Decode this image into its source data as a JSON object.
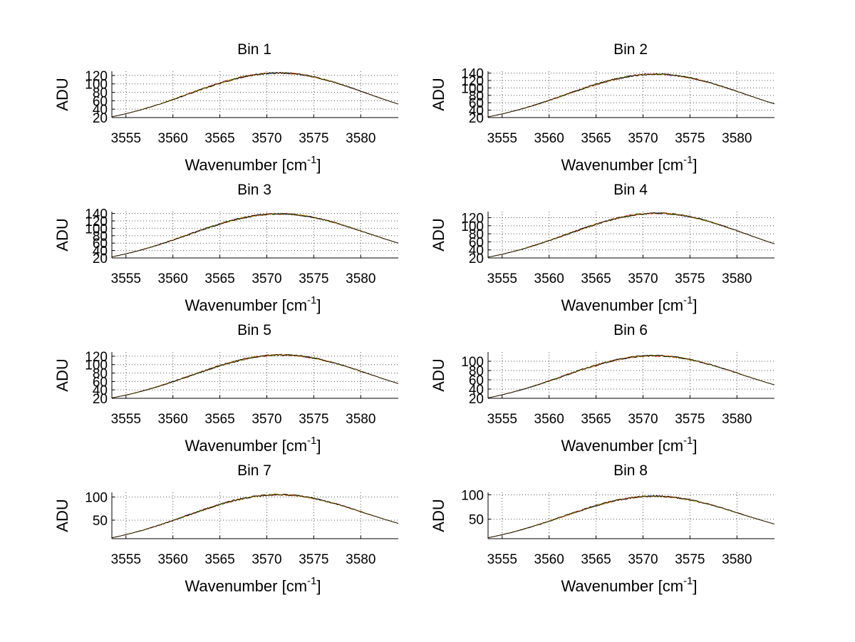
{
  "figure": {
    "background": "#ffffff",
    "line_colors": [
      "#0000ff",
      "#00a000",
      "#ff0000",
      "#e0c000",
      "#000000"
    ]
  },
  "chart_data": [
    {
      "type": "line",
      "title": "Bin 1",
      "xlabel": "Wavenumber [cm",
      "xlabel_sup": "-1",
      "xlabel_end": "]",
      "ylabel": "ADU",
      "xlim": [
        3553.5,
        3584
      ],
      "ylim": [
        20,
        130
      ],
      "xticks": [
        3555,
        3560,
        3565,
        3570,
        3575,
        3580
      ],
      "xtick_labels": [
        "3555",
        "3560",
        "3565",
        "3570",
        "3575",
        "3580"
      ],
      "yticks": [
        20,
        40,
        60,
        80,
        100,
        120
      ],
      "ytick_labels": [
        "20",
        "40",
        "60",
        "80",
        "100",
        "120"
      ],
      "peak": {
        "x": 3571.2,
        "y": 126
      },
      "start_y": 22,
      "end_y": 52,
      "grid": true
    },
    {
      "type": "line",
      "title": "Bin 2",
      "xlabel": "Wavenumber [cm",
      "xlabel_sup": "-1",
      "xlabel_end": "]",
      "ylabel": "ADU",
      "xlim": [
        3553.5,
        3584
      ],
      "ylim": [
        20,
        145
      ],
      "xticks": [
        3555,
        3560,
        3565,
        3570,
        3575,
        3580
      ],
      "xtick_labels": [
        "3555",
        "3560",
        "3565",
        "3570",
        "3575",
        "3580"
      ],
      "yticks": [
        20,
        40,
        60,
        80,
        100,
        120,
        140
      ],
      "ytick_labels": [
        "20",
        "40",
        "60",
        "80",
        "100",
        "120",
        "140"
      ],
      "peak": {
        "x": 3571.3,
        "y": 137
      },
      "start_y": 22,
      "end_y": 57,
      "grid": true
    },
    {
      "type": "line",
      "title": "Bin 3",
      "xlabel": "Wavenumber [cm",
      "xlabel_sup": "-1",
      "xlabel_end": "]",
      "ylabel": "ADU",
      "xlim": [
        3553.5,
        3584
      ],
      "ylim": [
        20,
        145
      ],
      "xticks": [
        3555,
        3560,
        3565,
        3570,
        3575,
        3580
      ],
      "xtick_labels": [
        "3555",
        "3560",
        "3565",
        "3570",
        "3575",
        "3580"
      ],
      "yticks": [
        20,
        40,
        60,
        80,
        100,
        120,
        140
      ],
      "ytick_labels": [
        "20",
        "40",
        "60",
        "80",
        "100",
        "120",
        "140"
      ],
      "peak": {
        "x": 3571.2,
        "y": 139
      },
      "start_y": 23,
      "end_y": 60,
      "grid": true
    },
    {
      "type": "line",
      "title": "Bin 4",
      "xlabel": "Wavenumber [cm",
      "xlabel_sup": "-1",
      "xlabel_end": "]",
      "ylabel": "ADU",
      "xlim": [
        3553.5,
        3584
      ],
      "ylim": [
        20,
        135
      ],
      "xticks": [
        3555,
        3560,
        3565,
        3570,
        3575,
        3580
      ],
      "xtick_labels": [
        "3555",
        "3560",
        "3565",
        "3570",
        "3575",
        "3580"
      ],
      "yticks": [
        20,
        40,
        60,
        80,
        100,
        120
      ],
      "ytick_labels": [
        "20",
        "40",
        "60",
        "80",
        "100",
        "120"
      ],
      "peak": {
        "x": 3571.5,
        "y": 131
      },
      "start_y": 22,
      "end_y": 55,
      "grid": true
    },
    {
      "type": "line",
      "title": "Bin 5",
      "xlabel": "Wavenumber [cm",
      "xlabel_sup": "-1",
      "xlabel_end": "]",
      "ylabel": "ADU",
      "xlim": [
        3553.5,
        3584
      ],
      "ylim": [
        20,
        130
      ],
      "xticks": [
        3555,
        3560,
        3565,
        3570,
        3575,
        3580
      ],
      "xtick_labels": [
        "3555",
        "3560",
        "3565",
        "3570",
        "3575",
        "3580"
      ],
      "yticks": [
        20,
        40,
        60,
        80,
        100,
        120
      ],
      "ytick_labels": [
        "20",
        "40",
        "60",
        "80",
        "100",
        "120"
      ],
      "peak": {
        "x": 3571.5,
        "y": 123
      },
      "start_y": 21,
      "end_y": 55,
      "grid": true
    },
    {
      "type": "line",
      "title": "Bin 6",
      "xlabel": "Wavenumber [cm",
      "xlabel_sup": "-1",
      "xlabel_end": "]",
      "ylabel": "ADU",
      "xlim": [
        3553.5,
        3584
      ],
      "ylim": [
        20,
        120
      ],
      "xticks": [
        3555,
        3560,
        3565,
        3570,
        3575,
        3580
      ],
      "xtick_labels": [
        "3555",
        "3560",
        "3565",
        "3570",
        "3575",
        "3580"
      ],
      "yticks": [
        20,
        40,
        60,
        80,
        100
      ],
      "ytick_labels": [
        "20",
        "40",
        "60",
        "80",
        "100"
      ],
      "peak": {
        "x": 3571.0,
        "y": 112
      },
      "start_y": 21,
      "end_y": 49,
      "grid": true
    },
    {
      "type": "line",
      "title": "Bin 7",
      "xlabel": "Wavenumber [cm",
      "xlabel_sup": "-1",
      "xlabel_end": "]",
      "ylabel": "ADU",
      "xlim": [
        3553.5,
        3584
      ],
      "ylim": [
        10,
        110
      ],
      "xticks": [
        3555,
        3560,
        3565,
        3570,
        3575,
        3580
      ],
      "xtick_labels": [
        "3555",
        "3560",
        "3565",
        "3570",
        "3575",
        "3580"
      ],
      "yticks": [
        50,
        100
      ],
      "ytick_labels": [
        "50",
        "100"
      ],
      "peak": {
        "x": 3571.0,
        "y": 105
      },
      "start_y": 12,
      "end_y": 43,
      "grid": true
    },
    {
      "type": "line",
      "title": "Bin 8",
      "xlabel": "Wavenumber [cm",
      "xlabel_sup": "-1",
      "xlabel_end": "]",
      "ylabel": "ADU",
      "xlim": [
        3553.5,
        3584
      ],
      "ylim": [
        10,
        105
      ],
      "xticks": [
        3555,
        3560,
        3565,
        3570,
        3575,
        3580
      ],
      "xtick_labels": [
        "3555",
        "3560",
        "3565",
        "3570",
        "3575",
        "3580"
      ],
      "yticks": [
        50,
        100
      ],
      "ytick_labels": [
        "50",
        "100"
      ],
      "peak": {
        "x": 3571.0,
        "y": 97
      },
      "start_y": 12,
      "end_y": 40,
      "grid": true
    }
  ]
}
